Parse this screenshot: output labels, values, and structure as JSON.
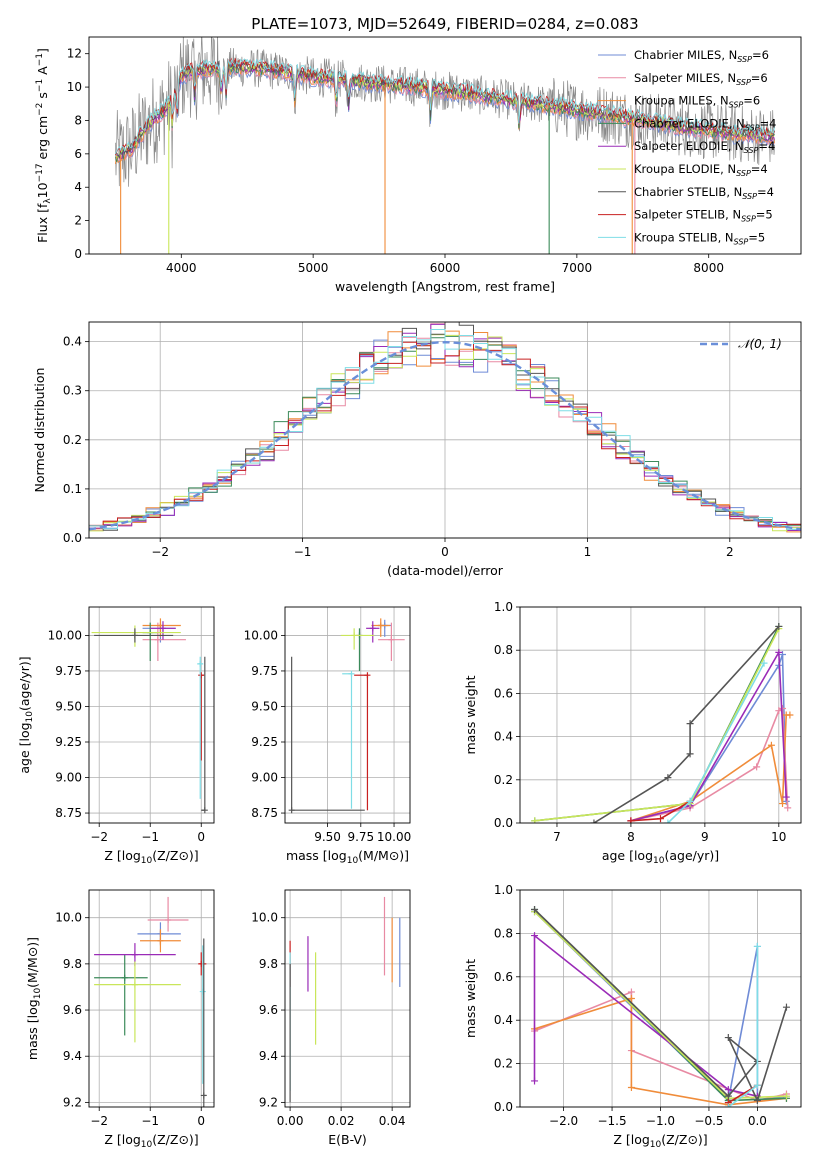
{
  "figure": {
    "title": "PLATE=1073, MJD=52649, FIBERID=0284, z=0.083",
    "colors": {
      "Chabrier MILES": "#6f8bd6",
      "Salpeter MILES": "#e88aa3",
      "Kroupa MILES": "#f08c3a",
      "Chabrier ELODIE": "#3b8a5a",
      "Salpeter ELODIE": "#9a2bb7",
      "Kroupa ELODIE": "#c9e65a",
      "Chabrier STELIB": "#555555",
      "Salpeter STELIB": "#c82020",
      "Kroupa STELIB": "#7fdde6",
      "gauss": "#6a8fd9",
      "data": "#888888"
    }
  },
  "chart_data": [
    {
      "id": "spectrum",
      "type": "line",
      "xlabel": "wavelength [Angstrom, rest frame]",
      "ylabel": "Flux [f",
      "xlim": [
        3300,
        8700
      ],
      "ylim": [
        0,
        13
      ],
      "xticks": [
        4000,
        5000,
        6000,
        7000,
        8000
      ],
      "yticks": [
        0,
        2,
        4,
        6,
        8,
        10,
        12
      ],
      "grid": false,
      "legend_position": "upper-right",
      "legend": [
        {
          "name": "Chabrier MILES",
          "nssp": "6"
        },
        {
          "name": "Salpeter MILES",
          "nssp": "6"
        },
        {
          "name": "Kroupa MILES",
          "nssp": "6"
        },
        {
          "name": "Chabrier ELODIE",
          "nssp": "4"
        },
        {
          "name": "Salpeter ELODIE",
          "nssp": "4"
        },
        {
          "name": "Kroupa ELODIE",
          "nssp": "4"
        },
        {
          "name": "Chabrier STELIB",
          "nssp": "4"
        },
        {
          "name": "Salpeter STELIB",
          "nssp": "5"
        },
        {
          "name": "Kroupa STELIB",
          "nssp": "5"
        }
      ],
      "continuum": {
        "x": [
          3500,
          3560,
          3620,
          3700,
          3780,
          3860,
          3940,
          4000,
          4100,
          4250,
          4400,
          4600,
          4800,
          5000,
          5200,
          5500,
          5800,
          6000,
          6200,
          6500,
          6800,
          7000,
          7200,
          7400,
          7600,
          7800,
          8000,
          8200,
          8400,
          8500
        ],
        "y": [
          5.8,
          6.0,
          6.3,
          7.2,
          8.0,
          8.5,
          9.4,
          10.7,
          11.0,
          11.1,
          11.2,
          11.1,
          10.9,
          10.6,
          10.5,
          10.2,
          10.0,
          9.8,
          9.6,
          9.2,
          8.9,
          8.6,
          8.4,
          8.1,
          7.9,
          7.6,
          7.4,
          7.2,
          7.1,
          7.0
        ]
      },
      "absorption_lines": [
        3933,
        3968,
        4102,
        4304,
        4340,
        4861,
        5175,
        5270,
        5890,
        6563
      ]
    },
    {
      "id": "residuals",
      "type": "line",
      "xlabel": "(data-model)/error",
      "ylabel": "Normed distribution",
      "xlim": [
        -2.5,
        2.5
      ],
      "ylim": [
        0,
        0.44
      ],
      "xticks": [
        -2,
        -1,
        0,
        1,
        2
      ],
      "yticks": [
        0.0,
        0.1,
        0.2,
        0.3,
        0.4
      ],
      "grid": true,
      "legend_label": "𝒩(0, 1)",
      "legend_position": "upper-right",
      "gauss": {
        "mu": 0,
        "sigma": 1
      }
    },
    {
      "id": "age_vs_Z",
      "type": "scatter",
      "xlabel": "Z [log",
      "ylabel": "age  [log",
      "xlim": [
        -2.2,
        0.25
      ],
      "ylim": [
        8.68,
        10.2
      ],
      "xticks": [
        -2,
        -1,
        0
      ],
      "yticks": [
        8.75,
        9.0,
        9.25,
        9.5,
        9.75,
        10.0
      ],
      "grid": true,
      "points": [
        {
          "model": "Chabrier MILES",
          "x": -0.8,
          "xerr": [
            0.35,
            0.3
          ],
          "y": 10.05,
          "yerr": [
            0.1,
            0.03
          ]
        },
        {
          "model": "Salpeter MILES",
          "x": -0.85,
          "xerr": [
            0.3,
            0.55
          ],
          "y": 9.97,
          "yerr": [
            0.15,
            0.12
          ]
        },
        {
          "model": "Kroupa MILES",
          "x": -0.8,
          "xerr": [
            0.35,
            0.4
          ],
          "y": 10.07,
          "yerr": [
            0.08,
            0.05
          ]
        },
        {
          "model": "Chabrier ELODIE",
          "x": -1.0,
          "xerr": [
            0.15,
            0.15
          ],
          "y": 10.02,
          "yerr": [
            0.2,
            0.07
          ]
        },
        {
          "model": "Salpeter ELODIE",
          "x": -0.75,
          "xerr": [
            0.25,
            0.25
          ],
          "y": 10.05,
          "yerr": [
            0.08,
            0.05
          ]
        },
        {
          "model": "Kroupa ELODIE",
          "x": -1.3,
          "xerr": [
            0.85,
            0.9
          ],
          "y": 10.02,
          "yerr": [
            0.1,
            0.05
          ]
        },
        {
          "model": "Chabrier STELIB",
          "x": -1.3,
          "xerr": [
            0.8,
            0.75
          ],
          "y": 10.0,
          "yerr": [
            0.05,
            0.05
          ]
        },
        {
          "model": "Salpeter STELIB",
          "x": 0.0,
          "xerr": [
            0.05,
            0.05
          ],
          "y": 9.72,
          "yerr": [
            0.6,
            0.0
          ]
        },
        {
          "model": "Kroupa STELIB",
          "x": -0.02,
          "xerr": [
            0.03,
            0.03
          ],
          "y": 9.8,
          "yerr": [
            0.95,
            0.05
          ]
        },
        {
          "model": "Chabrier STELIB",
          "x": 0.07,
          "xerr": [
            0.07,
            0.0
          ],
          "y": 8.77,
          "yerr": [
            0.0,
            1.08
          ]
        }
      ]
    },
    {
      "id": "age_vs_mass",
      "type": "scatter",
      "xlabel": "mass [log",
      "ylabel": "",
      "xlim": [
        9.18,
        10.12
      ],
      "ylim": [
        8.68,
        10.2
      ],
      "xticks": [
        9.5,
        9.75,
        10.0
      ],
      "yticks": [
        8.75,
        9.0,
        9.25,
        9.5,
        9.75,
        10.0
      ],
      "grid": true,
      "points": [
        {
          "model": "Chabrier MILES",
          "x": 9.93,
          "xerr": [
            0.05,
            0.05
          ],
          "y": 10.07,
          "yerr": [
            0.08,
            0.04
          ]
        },
        {
          "model": "Salpeter MILES",
          "x": 9.98,
          "xerr": [
            0.1,
            0.1
          ],
          "y": 9.97,
          "yerr": [
            0.15,
            0.12
          ]
        },
        {
          "model": "Kroupa MILES",
          "x": 9.9,
          "xerr": [
            0.07,
            0.07
          ],
          "y": 10.07,
          "yerr": [
            0.08,
            0.05
          ]
        },
        {
          "model": "Chabrier ELODIE",
          "x": 9.74,
          "xerr": [
            0.0,
            0.0
          ],
          "y": 10.0,
          "yerr": [
            0.25,
            0.05
          ]
        },
        {
          "model": "Salpeter ELODIE",
          "x": 9.84,
          "xerr": [
            0.05,
            0.05
          ],
          "y": 10.05,
          "yerr": [
            0.1,
            0.05
          ]
        },
        {
          "model": "Kroupa ELODIE",
          "x": 9.7,
          "xerr": [
            0.1,
            0.15
          ],
          "y": 10.0,
          "yerr": [
            0.1,
            0.05
          ]
        },
        {
          "model": "Salpeter STELIB",
          "x": 9.8,
          "xerr": [
            0.1,
            0.0
          ],
          "y": 9.72,
          "yerr": [
            0.95,
            0.0
          ]
        },
        {
          "model": "Kroupa STELIB",
          "x": 9.68,
          "xerr": [
            0.07,
            0.0
          ],
          "y": 9.73,
          "yerr": [
            0.95,
            0.0
          ]
        },
        {
          "model": "Chabrier STELIB",
          "x": 9.23,
          "xerr": [
            0.0,
            0.55
          ],
          "y": 8.77,
          "yerr": [
            0.0,
            1.08
          ]
        }
      ]
    },
    {
      "id": "weight_vs_age",
      "type": "line",
      "xlabel": "age  [log",
      "ylabel": "mass weight",
      "xlim": [
        6.5,
        10.3
      ],
      "ylim": [
        0,
        1.0
      ],
      "xticks": [
        7,
        8,
        9,
        10
      ],
      "yticks": [
        0.0,
        0.2,
        0.4,
        0.6,
        0.8,
        1.0
      ],
      "grid": true,
      "series": [
        {
          "model": "Chabrier MILES",
          "x": [
            8.0,
            8.8,
            10.0,
            10.05,
            10.1
          ],
          "y": [
            0.01,
            0.08,
            0.73,
            0.78,
            0.1
          ]
        },
        {
          "model": "Salpeter MILES",
          "x": [
            8.0,
            8.8,
            9.7,
            10.0,
            10.05,
            10.12
          ],
          "y": [
            0.01,
            0.07,
            0.26,
            0.52,
            0.53,
            0.07
          ]
        },
        {
          "model": "Kroupa MILES",
          "x": [
            8.0,
            8.8,
            9.9,
            10.05,
            10.1,
            10.15
          ],
          "y": [
            0.01,
            0.1,
            0.36,
            0.09,
            0.5,
            0.5
          ]
        },
        {
          "model": "Chabrier ELODIE",
          "x": [
            6.7,
            8.8,
            10.0
          ],
          "y": [
            0.01,
            0.09,
            0.91
          ]
        },
        {
          "model": "Salpeter ELODIE",
          "x": [
            8.0,
            8.8,
            10.0,
            10.1
          ],
          "y": [
            0.01,
            0.08,
            0.79,
            0.12
          ]
        },
        {
          "model": "Kroupa ELODIE",
          "x": [
            6.7,
            8.8,
            10.0
          ],
          "y": [
            0.01,
            0.09,
            0.9
          ]
        },
        {
          "model": "Chabrier STELIB",
          "x": [
            7.5,
            8.5,
            8.8,
            8.8,
            10.0
          ],
          "y": [
            0.0,
            0.21,
            0.32,
            0.46,
            0.91
          ]
        },
        {
          "model": "Salpeter STELIB",
          "x": [
            8.0,
            8.4,
            8.8
          ],
          "y": [
            0.01,
            0.02,
            0.1
          ]
        },
        {
          "model": "Kroupa STELIB",
          "x": [
            8.5,
            8.8,
            9.8
          ],
          "y": [
            0.0,
            0.1,
            0.74
          ]
        }
      ]
    },
    {
      "id": "mass_vs_Z",
      "type": "scatter",
      "xlabel": "Z [log",
      "ylabel": "mass [log",
      "xlim": [
        -2.2,
        0.25
      ],
      "ylim": [
        9.18,
        10.12
      ],
      "xticks": [
        -2,
        -1,
        0
      ],
      "yticks": [
        9.2,
        9.4,
        9.6,
        9.8,
        10.0
      ],
      "grid": true,
      "points": [
        {
          "model": "Chabrier MILES",
          "x": -0.8,
          "xerr": [
            0.45,
            0.4
          ],
          "y": 9.93,
          "yerr": [
            0.05,
            0.05
          ]
        },
        {
          "model": "Salpeter MILES",
          "x": -0.65,
          "xerr": [
            0.4,
            0.4
          ],
          "y": 9.99,
          "yerr": [
            0.05,
            0.1
          ]
        },
        {
          "model": "Kroupa MILES",
          "x": -0.8,
          "xerr": [
            0.4,
            0.4
          ],
          "y": 9.9,
          "yerr": [
            0.05,
            0.05
          ]
        },
        {
          "model": "Chabrier ELODIE",
          "x": -1.5,
          "xerr": [
            0.6,
            0.45
          ],
          "y": 9.74,
          "yerr": [
            0.25,
            0.1
          ]
        },
        {
          "model": "Salpeter ELODIE",
          "x": -1.3,
          "xerr": [
            0.8,
            0.8
          ],
          "y": 9.84,
          "yerr": [
            0.05,
            0.05
          ]
        },
        {
          "model": "Kroupa ELODIE",
          "x": -1.3,
          "xerr": [
            0.8,
            0.9
          ],
          "y": 9.71,
          "yerr": [
            0.25,
            0.1
          ]
        },
        {
          "model": "Salpeter STELIB",
          "x": 0.0,
          "xerr": [
            0.05,
            0.1
          ],
          "y": 9.8,
          "yerr": [
            0.05,
            0.05
          ]
        },
        {
          "model": "Kroupa STELIB",
          "x": 0.03,
          "xerr": [
            0.0,
            0.03
          ],
          "y": 9.68,
          "yerr": [
            0.4,
            0.2
          ]
        },
        {
          "model": "Chabrier STELIB",
          "x": 0.05,
          "xerr": [
            0.0,
            0.05
          ],
          "y": 9.23,
          "yerr": [
            0.05,
            0.68
          ]
        }
      ]
    },
    {
      "id": "mass_vs_EBV",
      "type": "scatter",
      "xlabel": "E(B-V)",
      "ylabel": "",
      "xlim": [
        -0.002,
        0.047
      ],
      "ylim": [
        9.18,
        10.12
      ],
      "xticks": [
        0.0,
        0.02,
        0.04
      ],
      "yticks": [
        9.2,
        9.4,
        9.6,
        9.8,
        10.0
      ],
      "grid": true,
      "points": [
        {
          "model": "Chabrier MILES",
          "x": 0.043,
          "y": 9.85,
          "yerr": [
            0.15,
            0.15
          ]
        },
        {
          "model": "Salpeter MILES",
          "x": 0.037,
          "y": 9.92,
          "yerr": [
            0.17,
            0.17
          ]
        },
        {
          "model": "Kroupa MILES",
          "x": 0.04,
          "y": 9.86,
          "yerr": [
            0.14,
            0.14
          ]
        },
        {
          "model": "Salpeter ELODIE",
          "x": 0.007,
          "y": 9.8,
          "yerr": [
            0.12,
            0.12
          ]
        },
        {
          "model": "Kroupa ELODIE",
          "x": 0.01,
          "y": 9.65,
          "yerr": [
            0.2,
            0.2
          ]
        },
        {
          "model": "Salpeter STELIB",
          "x": 0.0,
          "y": 9.8,
          "yerr": [
            0.1,
            0.1
          ]
        },
        {
          "model": "Kroupa STELIB",
          "x": 0.0,
          "y": 9.55,
          "yerr": [
            0.3,
            0.3
          ]
        },
        {
          "model": "Chabrier STELIB",
          "x": 0.0,
          "y": 9.5,
          "yerr": [
            0.3,
            0.3
          ]
        }
      ]
    },
    {
      "id": "weight_vs_Z",
      "type": "line",
      "xlabel": "Z [log",
      "ylabel": "mass weight",
      "xlim": [
        -2.45,
        0.45
      ],
      "ylim": [
        0,
        1.0
      ],
      "xticks": [
        -2.0,
        -1.5,
        -1.0,
        -0.5,
        0.0
      ],
      "yticks": [
        0.0,
        0.2,
        0.4,
        0.6,
        0.8,
        1.0
      ],
      "grid": true,
      "series": [
        {
          "model": "Chabrier MILES",
          "x": [
            -2.3,
            -0.3,
            0.0,
            0.0,
            0.3
          ],
          "y": [
            0.9,
            0.03,
            0.74,
            0.03,
            0.05
          ]
        },
        {
          "model": "Salpeter MILES",
          "x": [
            -2.3,
            -1.3,
            -1.3,
            0.0,
            0.3
          ],
          "y": [
            0.35,
            0.53,
            0.26,
            0.03,
            0.06
          ]
        },
        {
          "model": "Kroupa MILES",
          "x": [
            -2.3,
            -1.3,
            -1.3,
            -0.3,
            0.3
          ],
          "y": [
            0.36,
            0.5,
            0.09,
            0.01,
            0.04
          ]
        },
        {
          "model": "Chabrier ELODIE",
          "x": [
            -2.3,
            -0.3,
            0.3
          ],
          "y": [
            0.91,
            0.03,
            0.04
          ]
        },
        {
          "model": "Salpeter ELODIE",
          "x": [
            -2.3,
            -2.3,
            -0.3,
            0.0
          ],
          "y": [
            0.12,
            0.79,
            0.08,
            0.05
          ]
        },
        {
          "model": "Kroupa ELODIE",
          "x": [
            -2.3,
            -0.3,
            0.3
          ],
          "y": [
            0.9,
            0.04,
            0.05
          ]
        },
        {
          "model": "Chabrier STELIB",
          "x": [
            -2.3,
            -0.3,
            0.0,
            -0.3,
            0.0,
            0.3
          ],
          "y": [
            0.91,
            0.05,
            0.21,
            0.32,
            0.03,
            0.46
          ]
        },
        {
          "model": "Salpeter STELIB",
          "x": [
            -0.3,
            0.0
          ],
          "y": [
            0.02,
            0.1
          ]
        },
        {
          "model": "Kroupa STELIB",
          "x": [
            0.0,
            0.0,
            -0.3
          ],
          "y": [
            0.74,
            0.1,
            0.0
          ]
        }
      ]
    }
  ]
}
